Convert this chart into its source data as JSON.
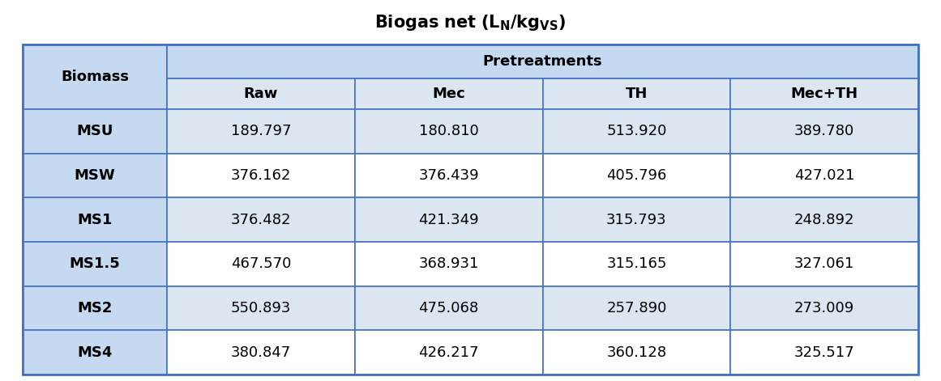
{
  "biomass_label": "Biomass",
  "pretreatments_label": "Pretreatments",
  "col_headers": [
    "Raw",
    "Mec",
    "TH",
    "Mec+TH"
  ],
  "row_labels": [
    "MSU",
    "MSW",
    "MS1",
    "MS1.5",
    "MS2",
    "MS4"
  ],
  "data": [
    [
      189.797,
      180.81,
      513.92,
      389.78
    ],
    [
      376.162,
      376.439,
      405.796,
      427.021
    ],
    [
      376.482,
      421.349,
      315.793,
      248.892
    ],
    [
      467.57,
      368.931,
      315.165,
      327.061
    ],
    [
      550.893,
      475.068,
      257.89,
      273.009
    ],
    [
      380.847,
      426.217,
      360.128,
      325.517
    ]
  ],
  "header_bg": "#c5d9f1",
  "subheader_bg": "#dce6f1",
  "row_odd_bg": "#dce6f1",
  "row_even_bg": "#ffffff",
  "biomass_col_bg": "#c5d9f1",
  "border_color": "#4472c4",
  "text_color": "#000000",
  "title_fontsize": 15,
  "header_fontsize": 13,
  "cell_fontsize": 13,
  "fig_width": 11.61,
  "fig_height": 4.71,
  "dpi": 100
}
